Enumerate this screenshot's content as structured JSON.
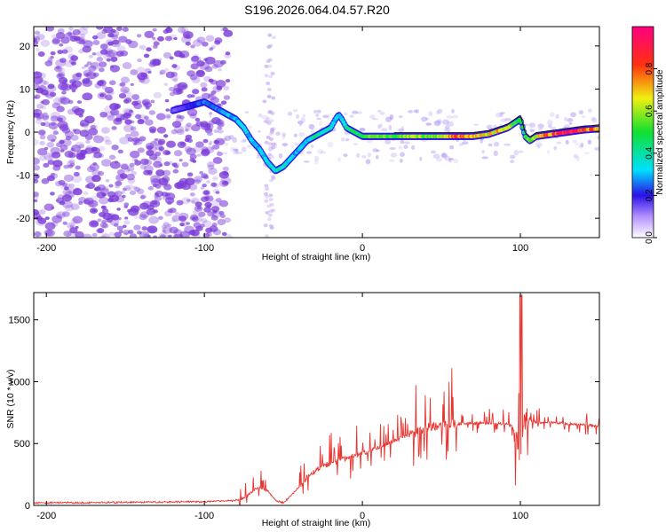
{
  "figure_title": "S196.2026.064.04.57.R20",
  "colors": {
    "snr_line": "#e8332e",
    "ridge_low": "#3a1fe0",
    "ridge_high": "#ff1a2e",
    "noise": "#7a3ad8"
  },
  "chart_data": [
    {
      "type": "heatmap",
      "title": "S196.2026.064.04.57.R20",
      "xlabel": "Height of straight line (km)",
      "ylabel": "Frequency (Hz)",
      "xlim": [
        -208,
        150
      ],
      "ylim": [
        -24.5,
        24.5
      ],
      "xticks": [
        -200,
        -100,
        0,
        100
      ],
      "xtick_labels": [
        "-200",
        "-100",
        "0",
        "100"
      ],
      "yticks": [
        20,
        10,
        0,
        -10,
        -20
      ],
      "ytick_labels": [
        "20",
        "10",
        "0",
        "-10",
        "-20"
      ],
      "colorbar": {
        "label": "Normalized spectral amplitude",
        "range": [
          0,
          1
        ],
        "ticks": [
          0.0,
          0.2,
          0.4,
          0.6,
          0.8
        ],
        "tick_labels": [
          "0.0",
          "0.2",
          "0.4",
          "0.6",
          "0.8"
        ]
      },
      "ridge": {
        "x": [
          -120,
          -110,
          -100,
          -95,
          -90,
          -85,
          -80,
          -75,
          -70,
          -65,
          -60,
          -55,
          -50,
          -45,
          -40,
          -35,
          -30,
          -25,
          -20,
          -17,
          -15,
          -13,
          -10,
          -5,
          0,
          10,
          20,
          30,
          40,
          50,
          60,
          70,
          80,
          88,
          92,
          96,
          100,
          103,
          106,
          110,
          120,
          130,
          140,
          150
        ],
        "freq": [
          5,
          6,
          7,
          6,
          5,
          4,
          3,
          1,
          -2,
          -4,
          -7,
          -9,
          -8,
          -6,
          -4,
          -2,
          -1,
          0,
          1,
          3,
          4,
          3,
          1,
          0,
          -1,
          -1,
          -1,
          -1,
          -1,
          -1,
          -1,
          -1,
          -0.5,
          0.5,
          1,
          2,
          3,
          -1,
          -2,
          -1,
          -0.5,
          0,
          0.5,
          0.8
        ],
        "amplitude": [
          0.15,
          0.2,
          0.25,
          0.25,
          0.25,
          0.3,
          0.3,
          0.35,
          0.3,
          0.3,
          0.35,
          0.35,
          0.4,
          0.3,
          0.3,
          0.3,
          0.4,
          0.4,
          0.35,
          0.3,
          0.3,
          0.35,
          0.4,
          0.45,
          0.5,
          0.55,
          0.5,
          0.6,
          0.55,
          0.6,
          0.8,
          0.7,
          0.65,
          0.7,
          0.6,
          0.5,
          0.45,
          0.5,
          0.55,
          0.6,
          0.8,
          0.95,
          0.85,
          0.7
        ]
      },
      "noise_region_x": [
        -208,
        -100
      ]
    },
    {
      "type": "line",
      "xlabel": "Height of straight line (km)",
      "ylabel": "SNR (10 * v/v)",
      "xlim": [
        -208,
        150
      ],
      "ylim": [
        0,
        1720
      ],
      "xticks": [
        -200,
        -100,
        0,
        100
      ],
      "xtick_labels": [
        "-200",
        "-100",
        "0",
        "100"
      ],
      "yticks": [
        0,
        500,
        1000,
        1500
      ],
      "ytick_labels": [
        "0",
        "500",
        "1000",
        "1500"
      ],
      "series": [
        {
          "name": "SNR",
          "x": [
            -208,
            -150,
            -100,
            -80,
            -75,
            -70,
            -65,
            -60,
            -55,
            -50,
            -45,
            -40,
            -35,
            -30,
            -25,
            -20,
            -15,
            -10,
            -5,
            0,
            5,
            10,
            20,
            30,
            35,
            40,
            45,
            50,
            55,
            60,
            70,
            80,
            90,
            95,
            98,
            100,
            102,
            104,
            110,
            120,
            130,
            140,
            150
          ],
          "y": [
            20,
            25,
            30,
            40,
            60,
            110,
            150,
            120,
            40,
            20,
            80,
            150,
            230,
            280,
            320,
            340,
            360,
            380,
            400,
            420,
            440,
            470,
            520,
            570,
            600,
            620,
            640,
            650,
            655,
            660,
            665,
            665,
            660,
            640,
            500,
            280,
            650,
            700,
            670,
            670,
            660,
            650,
            640
          ]
        }
      ]
    }
  ]
}
